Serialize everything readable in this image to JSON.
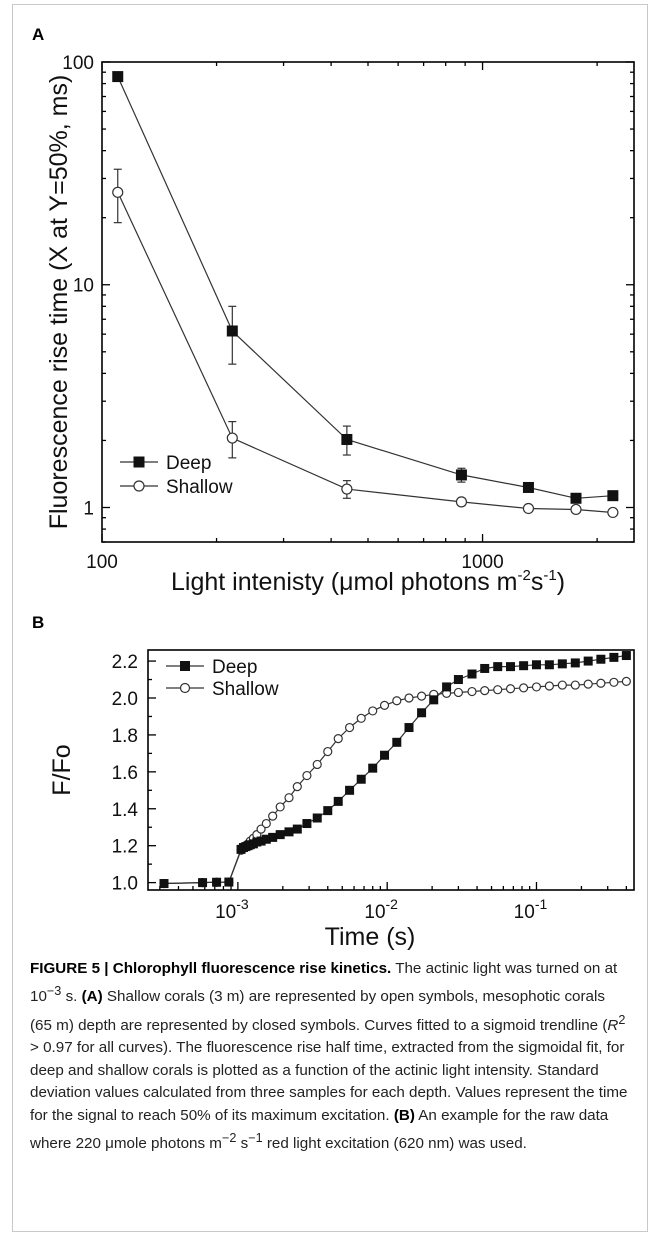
{
  "panel_a_label": "A",
  "panel_b_label": "B",
  "caption": {
    "label": "FIGURE 5 | Chlorophyll fluorescence rise kinetics.",
    "s1": " The actinic light was turned on at 10",
    "s1_sup": "−3",
    "s1_end": " s. ",
    "a_label": "(A)",
    "s2": " Shallow corals (3 m) are represented by open symbols, mesophotic corals (65 m) depth are represented by closed symbols. Curves fitted to a sigmoid trendline (",
    "r": "R",
    "r_sup": "2",
    "s3": " > 0.97 for all curves). The fluorescence rise half time, extracted from the sigmoidal fit, for deep and shallow corals is plotted as a function of the actinic light intensity. Standard deviation values calculated from three samples for each depth. Values represent the time for the signal to reach 50% of its maximum excitation. ",
    "b_label": "(B)",
    "s4": " An example for the raw data where 220 μmole photons m",
    "s4_sup1": "−2",
    "s4_mid": " s",
    "s4_sup2": "−1",
    "s4_end": " red light excitation (620 nm) was used."
  },
  "chart_data": [
    {
      "type": "line",
      "panel": "A",
      "xlabel": "Light intenisty (μmol photons m-2s-1)",
      "xlabel_main": "Light intenisty (",
      "xlabel_mu": "μ",
      "xlabel_rest": "mol photons m",
      "xlabel_sup1": "-2",
      "xlabel_s": "s",
      "xlabel_sup2": "-1",
      "xlabel_close": ")",
      "ylabel": "Fluorescence rise time (X at Y=50%, ms)",
      "x_scale": "log",
      "y_scale": "log",
      "xlim": [
        100,
        2500
      ],
      "ylim": [
        0.7,
        100
      ],
      "x_ticks": [
        {
          "value": 100,
          "label": "100"
        },
        {
          "value": 1000,
          "label": "1000"
        }
      ],
      "y_ticks": [
        {
          "value": 1,
          "label": "1"
        },
        {
          "value": 10,
          "label": "10"
        },
        {
          "value": 100,
          "label": "100"
        }
      ],
      "legend_position": "bottom-left",
      "series": [
        {
          "name": "Deep",
          "marker": "filled-square",
          "x": [
            110,
            220,
            440,
            880,
            1320,
            1760,
            2200
          ],
          "y": [
            86,
            6.2,
            2.02,
            1.4,
            1.23,
            1.1,
            1.13
          ],
          "error": [
            4,
            1.8,
            0.3,
            0.1,
            0.05,
            0.05,
            0.05
          ]
        },
        {
          "name": "Shallow",
          "marker": "open-circle",
          "x": [
            110,
            220,
            440,
            880,
            1320,
            1760,
            2200
          ],
          "y": [
            26,
            2.05,
            1.21,
            1.06,
            0.99,
            0.98,
            0.95
          ],
          "error": [
            7,
            0.38,
            0.11,
            0.04,
            0.03,
            0.03,
            0.03
          ]
        }
      ]
    },
    {
      "type": "line",
      "panel": "B",
      "xlabel": "Time (s)",
      "ylabel": "F/Fo",
      "x_scale": "log",
      "y_scale": "linear",
      "xlim": [
        0.00025,
        0.45
      ],
      "ylim": [
        0.96,
        2.26
      ],
      "x_ticks": [
        {
          "value": 0.001,
          "base": "10",
          "exp": "-3"
        },
        {
          "value": 0.01,
          "base": "10",
          "exp": "-2"
        },
        {
          "value": 0.1,
          "base": "10",
          "exp": "-1"
        }
      ],
      "y_ticks": [
        {
          "value": 1.0,
          "label": "1.0"
        },
        {
          "value": 1.2,
          "label": "1.2"
        },
        {
          "value": 1.4,
          "label": "1.4"
        },
        {
          "value": 1.6,
          "label": "1.6"
        },
        {
          "value": 1.8,
          "label": "1.8"
        },
        {
          "value": 2.0,
          "label": "2.0"
        },
        {
          "value": 2.2,
          "label": "2.2"
        }
      ],
      "legend_position": "top-left",
      "series": [
        {
          "name": "Deep",
          "marker": "filled-square",
          "x": [
            0.00032,
            0.00058,
            0.00072,
            0.00087,
            0.00105,
            0.00109,
            0.00113,
            0.00117,
            0.00121,
            0.00127,
            0.00134,
            0.00143,
            0.00155,
            0.00171,
            0.00192,
            0.0022,
            0.0025,
            0.0029,
            0.0034,
            0.004,
            0.0047,
            0.0056,
            0.0067,
            0.008,
            0.0096,
            0.0116,
            0.014,
            0.017,
            0.0205,
            0.025,
            0.03,
            0.037,
            0.045,
            0.055,
            0.067,
            0.082,
            0.1,
            0.122,
            0.149,
            0.182,
            0.222,
            0.27,
            0.33,
            0.4
          ],
          "y": [
            0.995,
            1.0,
            1.002,
            1.003,
            1.18,
            1.19,
            1.195,
            1.2,
            1.205,
            1.21,
            1.22,
            1.225,
            1.235,
            1.245,
            1.26,
            1.275,
            1.29,
            1.32,
            1.35,
            1.39,
            1.44,
            1.5,
            1.56,
            1.62,
            1.69,
            1.76,
            1.84,
            1.92,
            1.99,
            2.06,
            2.1,
            2.13,
            2.16,
            2.17,
            2.17,
            2.175,
            2.18,
            2.18,
            2.185,
            2.19,
            2.2,
            2.21,
            2.22,
            2.23
          ]
        },
        {
          "name": "Shallow",
          "marker": "open-circle",
          "x": [
            0.00032,
            0.00058,
            0.00072,
            0.00087,
            0.00105,
            0.00109,
            0.00113,
            0.00117,
            0.00121,
            0.00127,
            0.00134,
            0.00143,
            0.00155,
            0.00171,
            0.00192,
            0.0022,
            0.0025,
            0.0029,
            0.0034,
            0.004,
            0.0047,
            0.0056,
            0.0067,
            0.008,
            0.0096,
            0.0116,
            0.014,
            0.017,
            0.0205,
            0.025,
            0.03,
            0.037,
            0.045,
            0.055,
            0.067,
            0.082,
            0.1,
            0.122,
            0.149,
            0.182,
            0.222,
            0.27,
            0.33,
            0.4
          ],
          "y": [
            0.995,
            1.0,
            1.002,
            1.003,
            1.175,
            1.19,
            1.2,
            1.21,
            1.225,
            1.24,
            1.26,
            1.29,
            1.32,
            1.36,
            1.41,
            1.46,
            1.52,
            1.58,
            1.64,
            1.71,
            1.78,
            1.84,
            1.89,
            1.93,
            1.96,
            1.985,
            2.0,
            2.01,
            2.02,
            2.025,
            2.03,
            2.035,
            2.04,
            2.045,
            2.05,
            2.055,
            2.06,
            2.065,
            2.07,
            2.07,
            2.075,
            2.08,
            2.085,
            2.09
          ]
        }
      ]
    }
  ]
}
